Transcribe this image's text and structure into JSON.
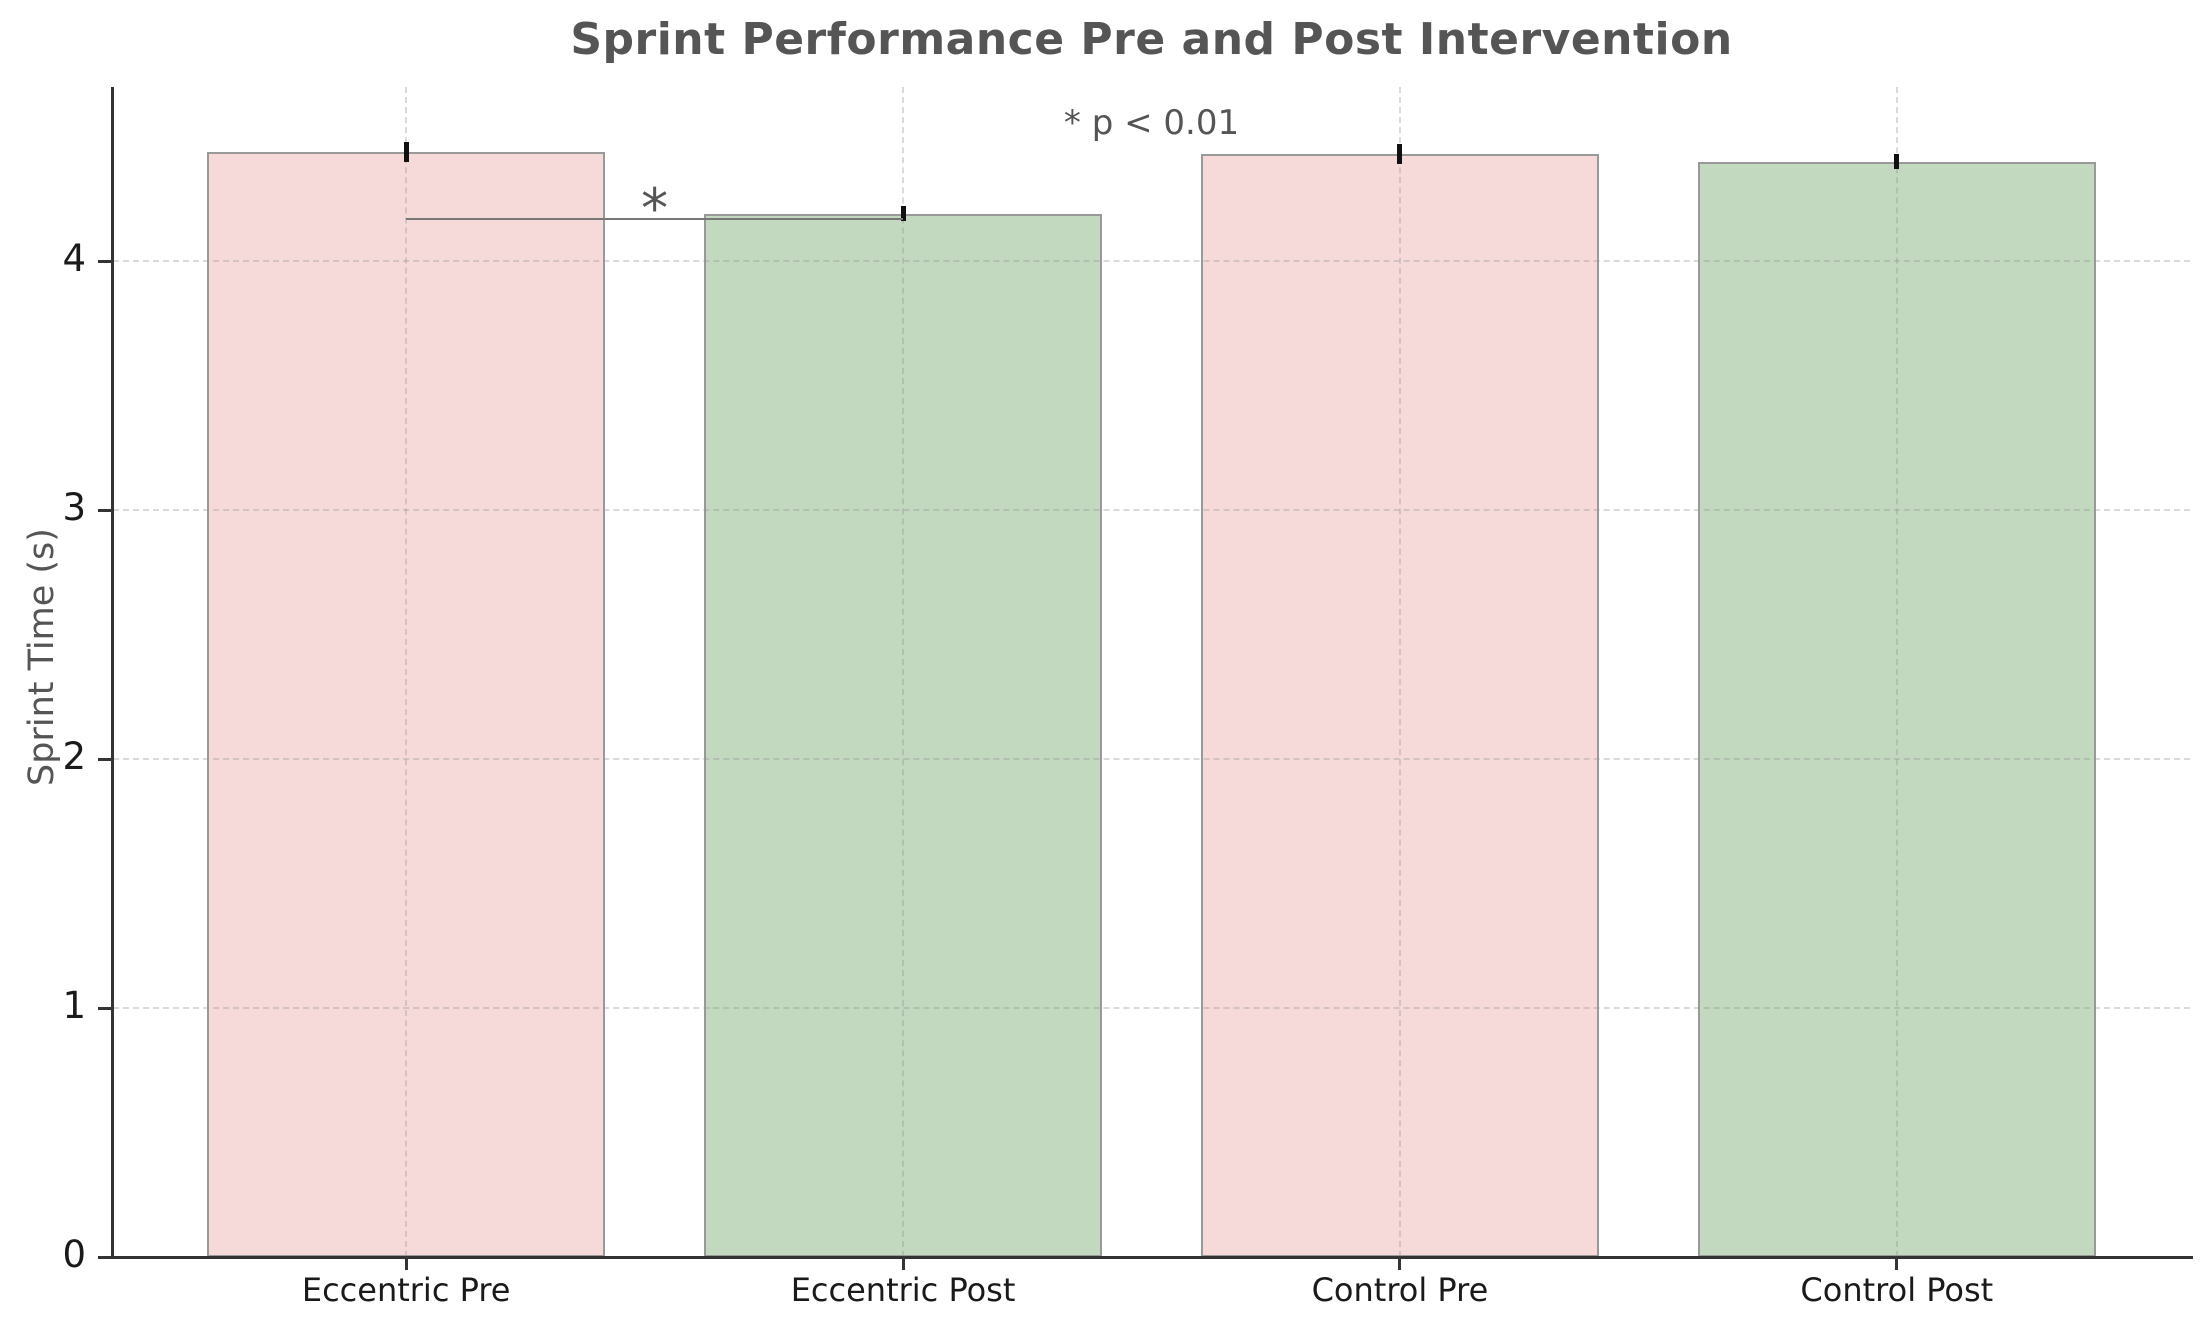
{
  "chart_data": {
    "type": "bar",
    "title": "Sprint Performance Pre and Post Intervention",
    "xlabel": "",
    "ylabel": "Sprint Time (s)",
    "categories": [
      "Eccentric Pre",
      "Eccentric Post",
      "Control Pre",
      "Control Post"
    ],
    "values": [
      4.44,
      4.19,
      4.43,
      4.4
    ],
    "errors": [
      0.04,
      0.03,
      0.04,
      0.03
    ],
    "bar_colors": [
      "#f6dada",
      "#c2d8bf",
      "#f6dada",
      "#c2d8bf"
    ],
    "bar_edge_color": "#999999",
    "error_bar_color": "#111111",
    "ylim": [
      0,
      4.7
    ],
    "yticks": [
      0,
      1,
      2,
      3,
      4
    ],
    "grid": "on-dashed",
    "legend_position": "none",
    "annotation": "* p < 0.01",
    "significance": {
      "groups": [
        "Eccentric Pre",
        "Eccentric Post"
      ],
      "marker": "*",
      "bar_y": 4.17,
      "note": "* p < 0.01"
    },
    "text_colors": {
      "title": "#555555",
      "axis_label": "#555555",
      "tick_label": "#1a1a1a",
      "annotation": "#555555"
    }
  }
}
